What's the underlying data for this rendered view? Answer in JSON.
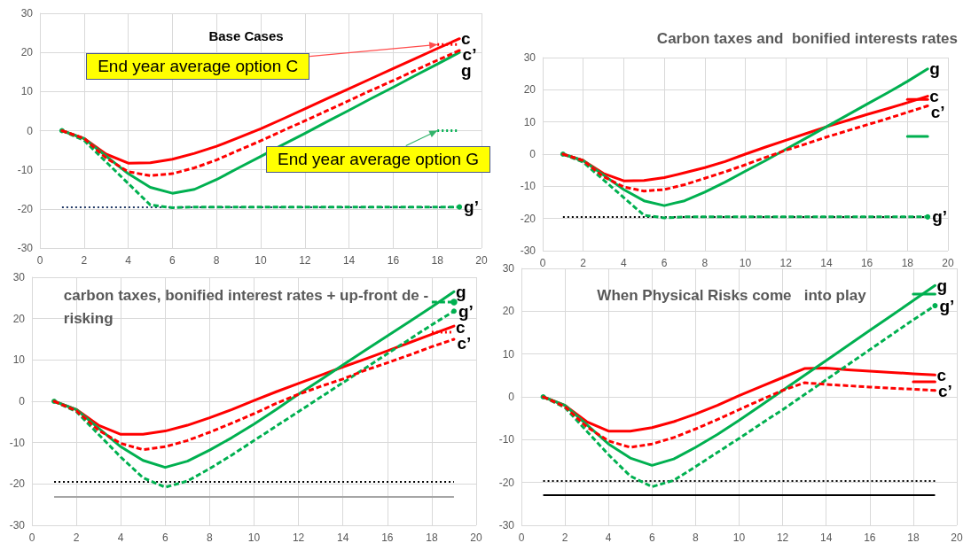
{
  "chart_data": [
    {
      "type": "line",
      "title": "Base Cases",
      "x": [
        1,
        2,
        3,
        4,
        5,
        6,
        7,
        8,
        9,
        10,
        11,
        12,
        13,
        14,
        15,
        16,
        17,
        18,
        19
      ],
      "xlim": [
        0,
        20
      ],
      "xticks": [
        0,
        2,
        4,
        6,
        8,
        10,
        12,
        14,
        16,
        18,
        20
      ],
      "ylim": [
        -30,
        30
      ],
      "yticks": [
        -30,
        -20,
        -10,
        0,
        10,
        20,
        30
      ],
      "grid": true,
      "legend": false,
      "marker": "none",
      "series": [
        {
          "name": "c",
          "color": "#ff0000",
          "line_style": "solid",
          "values": [
            0,
            -2,
            -6,
            -8.3,
            -8.2,
            -7.3,
            -5.8,
            -4,
            -1.8,
            0.5,
            3,
            5.6,
            8.2,
            10.7,
            13.3,
            15.9,
            18.4,
            21,
            23.5
          ]
        },
        {
          "name": "c’",
          "color": "#ff0000",
          "line_style": "dashed",
          "values": [
            0,
            -2,
            -7,
            -10.5,
            -11.5,
            -11,
            -9.5,
            -7.5,
            -5,
            -2.6,
            0,
            2.5,
            5.1,
            7.7,
            10.3,
            12.8,
            15.4,
            18,
            20.5
          ]
        },
        {
          "name": "g",
          "color": "#00b050",
          "line_style": "solid",
          "values": [
            0,
            -2,
            -6.5,
            -11,
            -14.5,
            -16,
            -15,
            -12.5,
            -9.5,
            -6.6,
            -3.6,
            -0.7,
            2.3,
            5.2,
            8.2,
            11.1,
            14.1,
            17,
            20
          ]
        },
        {
          "name": "g’",
          "color": "#00b050",
          "line_style": "dashed",
          "values": [
            0,
            -2.5,
            -8,
            -13.5,
            -19,
            -19.7,
            -19.5,
            -19.5,
            -19.5,
            -19.5,
            -19.5,
            -19.5,
            -19.5,
            -19.5,
            -19.5,
            -19.5,
            -19.5,
            -19.5,
            -19.5
          ]
        },
        {
          "color": "#ff0000",
          "line_style": "dotted",
          "values": [
            null,
            null,
            null,
            null,
            null,
            null,
            null,
            null,
            null,
            null,
            null,
            null,
            null,
            null,
            null,
            null,
            null,
            22,
            22
          ]
        },
        {
          "color": "#00b050",
          "line_style": "dotted",
          "values": [
            null,
            null,
            null,
            null,
            null,
            null,
            null,
            null,
            null,
            null,
            null,
            null,
            null,
            null,
            null,
            null,
            null,
            0,
            0
          ]
        }
      ],
      "ref_lines": [
        {
          "axis": "y",
          "value": -19.5,
          "color": "#203864",
          "line_style": "dotted"
        }
      ],
      "annotations": [
        {
          "text": "End year average option C",
          "x": 18,
          "y": 22
        },
        {
          "text": "End year average option G",
          "x": 18,
          "y": 0
        }
      ]
    },
    {
      "type": "line",
      "title": "Carbon taxes and  bonified interests rates",
      "x": [
        1,
        2,
        3,
        4,
        5,
        6,
        7,
        8,
        9,
        10,
        11,
        12,
        13,
        14,
        15,
        16,
        17,
        18,
        19
      ],
      "xlim": [
        0,
        20
      ],
      "xticks": [
        0,
        2,
        4,
        6,
        8,
        10,
        12,
        14,
        16,
        18,
        20
      ],
      "ylim": [
        -30,
        30
      ],
      "yticks": [
        -30,
        -20,
        -10,
        0,
        10,
        20,
        30
      ],
      "grid": true,
      "legend": false,
      "marker": "none",
      "series": [
        {
          "name": "c",
          "color": "#ff0000",
          "line_style": "solid",
          "values": [
            0,
            -2,
            -6,
            -8.3,
            -8.2,
            -7.3,
            -5.8,
            -4.2,
            -2.3,
            0,
            2.2,
            4.3,
            6.4,
            8.5,
            10.4,
            12.3,
            14.1,
            16,
            18
          ]
        },
        {
          "name": "c’",
          "color": "#ff0000",
          "line_style": "dashed",
          "values": [
            0,
            -2,
            -7,
            -10.2,
            -11.5,
            -11,
            -9.5,
            -7.5,
            -5.5,
            -3.3,
            -1,
            1.2,
            3.2,
            5.3,
            7.2,
            9.1,
            11,
            13,
            15
          ]
        },
        {
          "name": "g",
          "color": "#00b050",
          "line_style": "solid",
          "values": [
            0,
            -2,
            -6.5,
            -11,
            -14.5,
            -16,
            -14.5,
            -11.8,
            -8.7,
            -5.3,
            -2,
            1.5,
            5,
            8.5,
            12,
            15.5,
            19,
            22.6,
            26.5
          ]
        },
        {
          "name": "g’",
          "color": "#00b050",
          "line_style": "dashed",
          "values": [
            0,
            -2.5,
            -8,
            -13.5,
            -19,
            -19.8,
            -19.5,
            -19.5,
            -19.5,
            -19.5,
            -19.5,
            -19.5,
            -19.5,
            -19.5,
            -19.5,
            -19.5,
            -19.5,
            -19.5,
            -19.5
          ]
        },
        {
          "color": "#ff0000",
          "line_style": "solid",
          "values": [
            null,
            null,
            null,
            null,
            null,
            null,
            null,
            null,
            null,
            null,
            null,
            null,
            null,
            null,
            null,
            null,
            null,
            17,
            17
          ]
        },
        {
          "color": "#00b050",
          "line_style": "solid",
          "values": [
            null,
            null,
            null,
            null,
            null,
            null,
            null,
            null,
            null,
            null,
            null,
            null,
            null,
            null,
            null,
            null,
            null,
            5.5,
            5.5
          ]
        }
      ],
      "ref_lines": [
        {
          "axis": "y",
          "value": -19.5,
          "color": "#000000",
          "line_style": "dotted"
        }
      ]
    },
    {
      "type": "line",
      "title": "carbon taxes, bonified interest rates + up-front de -\nrisking",
      "x": [
        1,
        2,
        3,
        4,
        5,
        6,
        7,
        8,
        9,
        10,
        11,
        12,
        13,
        14,
        15,
        16,
        17,
        18,
        19
      ],
      "xlim": [
        0,
        20
      ],
      "xticks": [
        0,
        2,
        4,
        6,
        8,
        10,
        12,
        14,
        16,
        18,
        20
      ],
      "ylim": [
        -30,
        30
      ],
      "yticks": [
        -30,
        -20,
        -10,
        0,
        10,
        20,
        30
      ],
      "grid": true,
      "legend": false,
      "marker": "none",
      "series": [
        {
          "name": "c",
          "color": "#ff0000",
          "line_style": "solid",
          "values": [
            0,
            -2,
            -5.8,
            -8,
            -8,
            -7.2,
            -5.8,
            -4,
            -2,
            0.2,
            2.3,
            4.3,
            6.3,
            8.3,
            10.2,
            12.2,
            14.2,
            16.2,
            18.2
          ]
        },
        {
          "name": "c’",
          "color": "#ff0000",
          "line_style": "dashed",
          "values": [
            0,
            -2.3,
            -7,
            -10.2,
            -11.7,
            -11,
            -9.5,
            -7.5,
            -5.3,
            -3,
            -0.5,
            1.7,
            3.6,
            5.4,
            7.5,
            9.3,
            11.2,
            13.2,
            15
          ]
        },
        {
          "name": "g",
          "color": "#00b050",
          "line_style": "solid",
          "values": [
            0,
            -2,
            -6.5,
            -11,
            -14.3,
            -16,
            -14.5,
            -11.8,
            -8.8,
            -5.5,
            -2,
            1.7,
            5.2,
            8.8,
            12.3,
            15.8,
            19.3,
            22.8,
            26.5
          ]
        },
        {
          "name": "g’",
          "color": "#00b050",
          "line_style": "dashed",
          "values": [
            0,
            -2.5,
            -8,
            -13.5,
            -18.5,
            -20.8,
            -19.3,
            -16.3,
            -13,
            -9.5,
            -6,
            -2.5,
            1,
            4.5,
            8,
            11.5,
            15,
            18.5,
            21.8
          ]
        },
        {
          "color": "#00b050",
          "line_style": "dashed",
          "values": [
            null,
            null,
            null,
            null,
            null,
            null,
            null,
            null,
            null,
            null,
            null,
            null,
            null,
            null,
            null,
            null,
            null,
            24,
            24
          ]
        },
        {
          "color": "#ff0000",
          "line_style": "dotted",
          "values": [
            null,
            null,
            null,
            null,
            null,
            null,
            null,
            null,
            null,
            null,
            null,
            null,
            null,
            null,
            null,
            null,
            null,
            16.7,
            16.7
          ]
        }
      ],
      "ref_lines": [
        {
          "axis": "y",
          "value": -19.5,
          "color": "#000000",
          "line_style": "dotted"
        },
        {
          "axis": "y",
          "value": -23,
          "color": "#a6a6a6",
          "line_style": "solid"
        }
      ]
    },
    {
      "type": "line",
      "title": "When Physical Risks come   into play",
      "x": [
        1,
        2,
        3,
        4,
        5,
        6,
        7,
        8,
        9,
        10,
        11,
        12,
        13,
        14,
        15,
        16,
        17,
        18,
        19
      ],
      "xlim": [
        0,
        20
      ],
      "xticks": [
        0,
        2,
        4,
        6,
        8,
        10,
        12,
        14,
        16,
        18,
        20
      ],
      "ylim": [
        -30,
        30
      ],
      "yticks": [
        -30,
        -20,
        -10,
        0,
        10,
        20,
        30
      ],
      "grid": true,
      "legend": false,
      "marker": "none",
      "series": [
        {
          "name": "c",
          "color": "#ff0000",
          "line_style": "solid",
          "values": [
            0,
            -2,
            -5.8,
            -8,
            -8,
            -7.2,
            -5.8,
            -4,
            -2,
            0.3,
            2.4,
            4.5,
            6.6,
            6.7,
            6.3,
            6,
            5.7,
            5.4,
            5.1
          ]
        },
        {
          "name": "c’",
          "color": "#ff0000",
          "line_style": "dashed",
          "values": [
            0,
            -2.3,
            -7,
            -10.3,
            -11.8,
            -11,
            -9.5,
            -7.5,
            -5.3,
            -3,
            -0.7,
            1.5,
            3.3,
            2.9,
            2.6,
            2.3,
            2,
            1.8,
            1.5
          ]
        },
        {
          "name": "g",
          "color": "#00b050",
          "line_style": "solid",
          "values": [
            0,
            -2,
            -6.5,
            -11,
            -14.3,
            -16,
            -14.5,
            -11.8,
            -8.8,
            -5.5,
            -2,
            1.5,
            5,
            8.5,
            12,
            15.5,
            19,
            22.5,
            26
          ]
        },
        {
          "name": "g’",
          "color": "#00b050",
          "line_style": "dashed",
          "values": [
            0,
            -2.5,
            -8,
            -13.5,
            -18.5,
            -21,
            -19.5,
            -16.3,
            -13,
            -9.7,
            -6.3,
            -3,
            0.5,
            4,
            7.5,
            11,
            14.5,
            18,
            21.3
          ]
        },
        {
          "color": "#00b050",
          "line_style": "solid",
          "values": [
            null,
            null,
            null,
            null,
            null,
            null,
            null,
            null,
            null,
            null,
            null,
            null,
            null,
            null,
            null,
            null,
            null,
            24,
            24
          ]
        },
        {
          "color": "#ff0000",
          "line_style": "solid",
          "values": [
            null,
            null,
            null,
            null,
            null,
            null,
            null,
            null,
            null,
            null,
            null,
            null,
            null,
            null,
            null,
            null,
            null,
            3.5,
            3.5
          ]
        }
      ],
      "ref_lines": [
        {
          "axis": "y",
          "value": -19.5,
          "color": "#000000",
          "line_style": "dotted"
        },
        {
          "axis": "y",
          "value": -23,
          "color": "#000000",
          "line_style": "solid"
        }
      ]
    }
  ]
}
